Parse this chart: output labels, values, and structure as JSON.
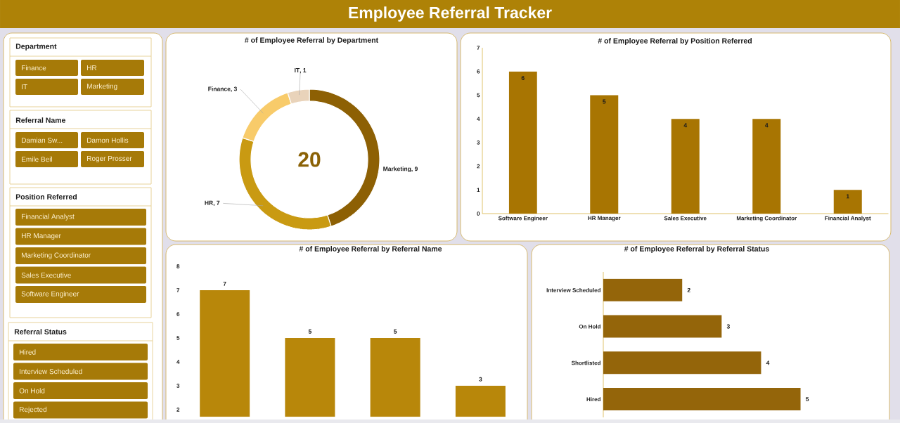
{
  "chart_data": [
    {
      "type": "other",
      "title": "Employee Referral Tracker"
    },
    {
      "type": "other",
      "title": "Department",
      "categories": [
        "Finance",
        "HR",
        "IT",
        "Marketing"
      ]
    },
    {
      "type": "other",
      "title": "Referral Name",
      "categories": [
        "Damian Sw...",
        "Damon Hollis",
        "Emile Beil",
        "Roger Prosser"
      ]
    },
    {
      "type": "other",
      "title": "Position Referred",
      "categories": [
        "Financial Analyst",
        "HR Manager",
        "Marketing Coordinator",
        "Sales Executive",
        "Software Engineer"
      ]
    },
    {
      "type": "other",
      "title": "Referral Status",
      "categories": [
        "Hired",
        "Interview Scheduled",
        "On Hold",
        "Rejected"
      ]
    },
    {
      "type": "donut",
      "title": "# of Employee Referral by Department",
      "categories": [
        "Marketing",
        "HR",
        "Finance",
        "IT"
      ],
      "values": [
        9,
        7,
        3,
        1
      ],
      "colors": [
        "#8d6004",
        "#c99a12",
        "#f8cb6a",
        "#e9d3ba"
      ],
      "value_labels": [
        ", 9",
        ", 7",
        ", 3",
        ", 1"
      ],
      "annotations": [
        "20"
      ]
    },
    {
      "type": "bar",
      "title": "# of Employee Referral by Position Referred",
      "categories": [
        "Software Engineer",
        "HR Manager",
        "Sales Executive",
        "Marketing Coordinator",
        "Financial Analyst"
      ],
      "values": [
        6,
        5,
        4,
        4,
        1
      ],
      "color": "#a87502",
      "ylim": [
        0,
        7
      ],
      "yticks": [
        0,
        1,
        2,
        3,
        4,
        5,
        6,
        7
      ],
      "data_labels": true
    },
    {
      "type": "bar",
      "title": "# of Employee Referral by Referral Name",
      "categories": [
        null,
        null,
        null,
        null
      ],
      "values": [
        7,
        5,
        5,
        3
      ],
      "color": "#b8870a",
      "ylim": [
        1.7,
        8
      ],
      "yticks": [
        2,
        3,
        4,
        5,
        6,
        7,
        8
      ],
      "data_labels": true,
      "tick_labels": "y"
    },
    {
      "type": "bar",
      "orientation": "horizontal",
      "title": "# of Employee Referral by Referral Status",
      "categories": [
        "Interview Scheduled",
        "On Hold",
        "Shortlisted",
        "Hired"
      ],
      "values": [
        2,
        3,
        4,
        5
      ],
      "color": "#94650a",
      "data_labels": true,
      "tick_labels": "y"
    }
  ]
}
